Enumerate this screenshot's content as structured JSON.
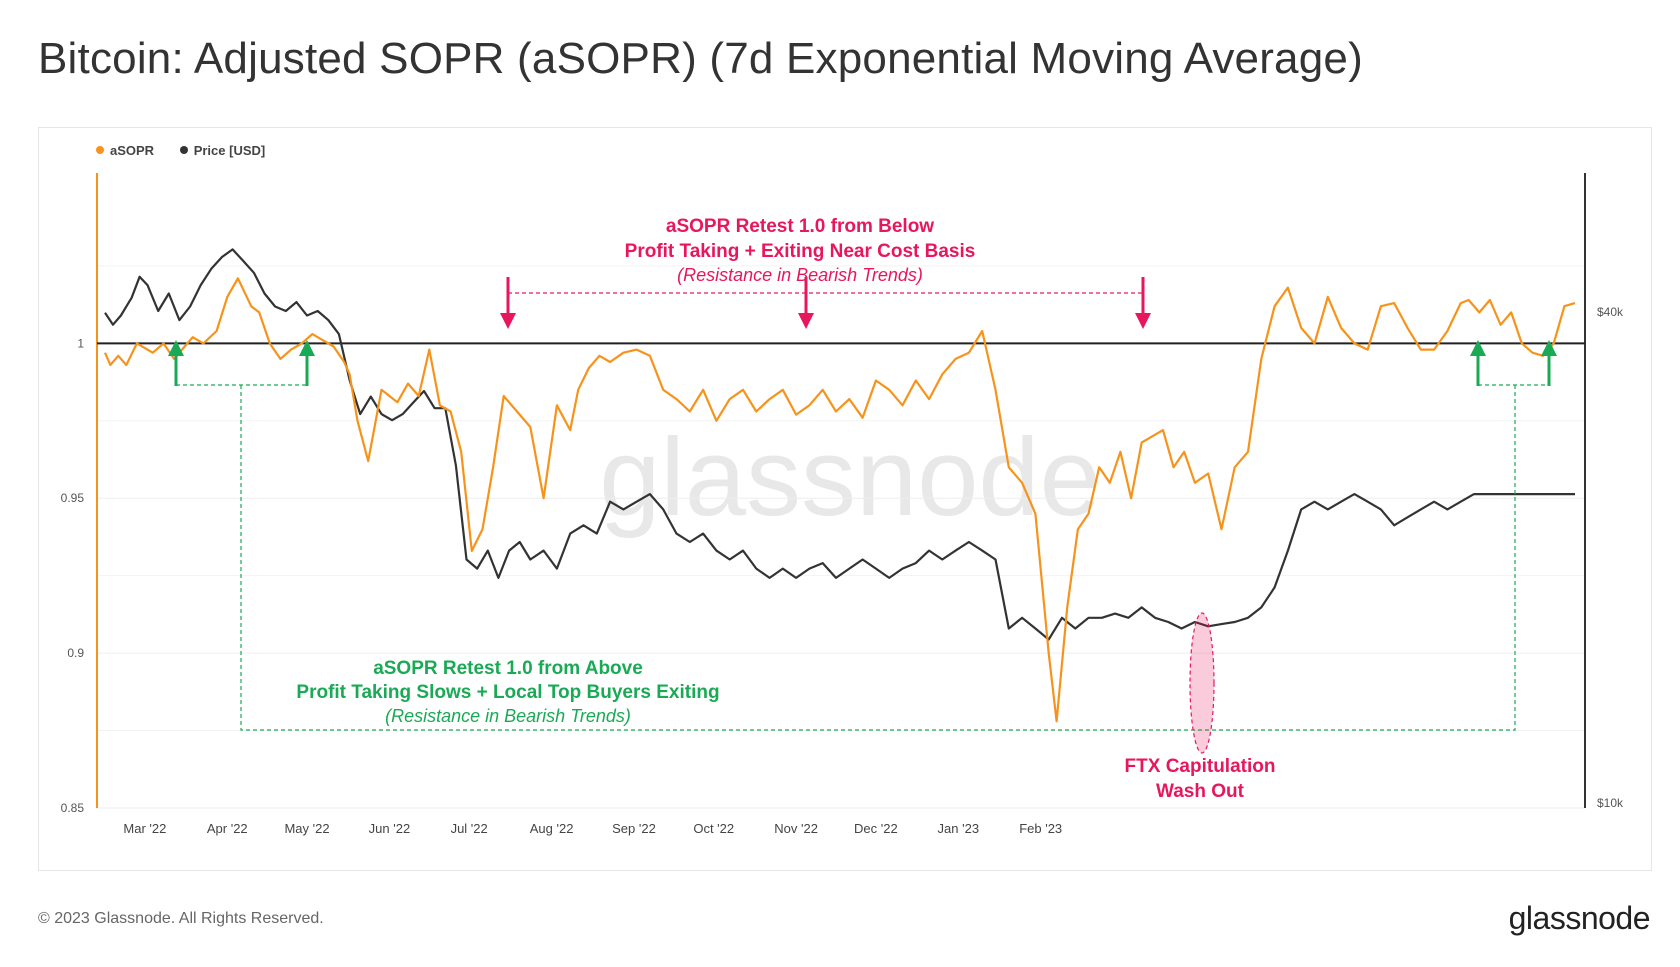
{
  "title": "Bitcoin: Adjusted SOPR (aSOPR) (7d Exponential Moving Average)",
  "footer": "© 2023 Glassnode. All Rights Reserved.",
  "brand": "glassnode",
  "watermark": "glassnode",
  "colors": {
    "asopr": "#f7931a",
    "price": "#333333",
    "red": "#e8175d",
    "green": "#1aaa55",
    "baseline": "#222222"
  },
  "chart_data": {
    "type": "line",
    "legend": [
      {
        "name": "aSOPR",
        "color": "#f7931a"
      },
      {
        "name": "Price [USD]",
        "color": "#333333"
      }
    ],
    "x_ticks": [
      "Mar '22",
      "Apr '22",
      "May '22",
      "Jun '22",
      "Jul '22",
      "Aug '22",
      "Sep '22",
      "Oct '22",
      "Nov '22",
      "Dec '22",
      "Jan '23",
      "Feb '23"
    ],
    "y_left_ticks": [
      "1",
      "0.95",
      "0.9",
      "0.85"
    ],
    "y_left_tick_values": [
      1.0,
      0.95,
      0.9,
      0.85
    ],
    "y_right_ticks": [
      "$40k",
      "$10k"
    ],
    "ylim_left": [
      0.85,
      1.055
    ],
    "baseline": 1.0,
    "series": [
      {
        "name": "aSOPR",
        "x": [
          0,
          2,
          5,
          8,
          12,
          18,
          22,
          26,
          30,
          33,
          37,
          42,
          46,
          50,
          55,
          58,
          62,
          66,
          70,
          74,
          78,
          82,
          86,
          90,
          92,
          95,
          99,
          104,
          110,
          114,
          118,
          122,
          126,
          130,
          134,
          138,
          142,
          146,
          150,
          155,
          160,
          165,
          170,
          175,
          178,
          182,
          186,
          190,
          195,
          200,
          205,
          210,
          215,
          220,
          225,
          230,
          235,
          240,
          245,
          250,
          255,
          260,
          265,
          270,
          275,
          280,
          285,
          290,
          295,
          300,
          305,
          310,
          315,
          320,
          325,
          330,
          335,
          340,
          345,
          350,
          355,
          358,
          362,
          366,
          370,
          374,
          378,
          382,
          386,
          390,
          394,
          398,
          402,
          406,
          410,
          415,
          420,
          425,
          430,
          435,
          440,
          445,
          450,
          455,
          460,
          465,
          470,
          475,
          480,
          485,
          490,
          495,
          500,
          505,
          510,
          513,
          517,
          521,
          525,
          529,
          533,
          537,
          541,
          545,
          549,
          553
        ],
        "values": [
          0.997,
          0.993,
          0.996,
          0.993,
          1.0,
          0.997,
          1.0,
          0.995,
          0.999,
          1.002,
          1.0,
          1.004,
          1.015,
          1.021,
          1.012,
          1.01,
          1.0,
          0.995,
          0.998,
          1.0,
          1.003,
          1.001,
          0.999,
          0.994,
          0.99,
          0.975,
          0.962,
          0.985,
          0.981,
          0.987,
          0.983,
          0.998,
          0.98,
          0.978,
          0.965,
          0.933,
          0.94,
          0.96,
          0.983,
          0.978,
          0.973,
          0.95,
          0.98,
          0.972,
          0.985,
          0.992,
          0.996,
          0.994,
          0.997,
          0.998,
          0.996,
          0.985,
          0.982,
          0.978,
          0.985,
          0.975,
          0.982,
          0.985,
          0.978,
          0.982,
          0.985,
          0.977,
          0.98,
          0.985,
          0.978,
          0.982,
          0.976,
          0.988,
          0.985,
          0.98,
          0.988,
          0.982,
          0.99,
          0.995,
          0.997,
          1.004,
          0.985,
          0.96,
          0.955,
          0.945,
          0.9,
          0.878,
          0.915,
          0.94,
          0.945,
          0.96,
          0.955,
          0.965,
          0.95,
          0.968,
          0.97,
          0.972,
          0.96,
          0.965,
          0.955,
          0.958,
          0.94,
          0.96,
          0.965,
          0.995,
          1.012,
          1.018,
          1.005,
          1.0,
          1.015,
          1.005,
          1.0,
          0.998,
          1.012,
          1.013,
          1.005,
          0.998,
          0.998,
          1.004,
          1.013,
          1.014,
          1.01,
          1.014,
          1.006,
          1.01,
          1.0,
          0.997,
          0.996,
          1.0,
          1.012,
          1.013
        ]
      },
      {
        "name": "Price [USD]",
        "x": [
          0,
          3,
          6,
          10,
          13,
          16,
          20,
          24,
          28,
          32,
          36,
          40,
          44,
          48,
          52,
          56,
          60,
          64,
          68,
          72,
          76,
          80,
          84,
          88,
          92,
          96,
          100,
          104,
          108,
          112,
          116,
          120,
          124,
          128,
          132,
          136,
          140,
          144,
          148,
          152,
          156,
          160,
          165,
          170,
          175,
          180,
          185,
          190,
          195,
          200,
          205,
          210,
          215,
          220,
          225,
          230,
          235,
          240,
          245,
          250,
          255,
          260,
          265,
          270,
          275,
          280,
          285,
          290,
          295,
          300,
          305,
          310,
          315,
          320,
          325,
          330,
          335,
          340,
          345,
          350,
          355,
          360,
          365,
          370,
          375,
          380,
          385,
          390,
          395,
          400,
          405,
          410,
          415,
          420,
          425,
          430,
          435,
          440,
          445,
          450,
          455,
          460,
          465,
          470,
          475,
          480,
          485,
          490,
          495,
          500,
          505,
          510,
          515,
          520,
          525,
          530,
          535,
          540,
          545,
          549,
          553
        ],
        "values": [
          39.8,
          38.5,
          39.5,
          41.5,
          44.0,
          43.0,
          40.0,
          42.0,
          39.0,
          40.5,
          43.0,
          45.0,
          46.5,
          47.5,
          46.0,
          44.5,
          42.0,
          40.5,
          40.0,
          41.0,
          39.5,
          40.0,
          39.0,
          37.5,
          33.0,
          30.0,
          31.5,
          30.0,
          29.5,
          30.0,
          31.0,
          32.0,
          30.5,
          30.5,
          26.0,
          20.0,
          19.5,
          20.5,
          19.0,
          20.5,
          21.0,
          20.0,
          20.5,
          19.5,
          21.5,
          22.0,
          21.5,
          23.5,
          23.0,
          23.5,
          24.0,
          23.0,
          21.5,
          21.0,
          21.5,
          20.5,
          20.0,
          20.5,
          19.5,
          19.0,
          19.5,
          19.0,
          19.5,
          19.8,
          19.0,
          19.5,
          20.0,
          19.5,
          19.0,
          19.5,
          19.8,
          20.5,
          20.0,
          20.5,
          21.0,
          20.5,
          20.0,
          16.5,
          17.0,
          16.5,
          16.0,
          17.0,
          16.5,
          17.0,
          17.0,
          17.2,
          17.0,
          17.5,
          17.0,
          16.8,
          16.5,
          16.8,
          16.6,
          16.7,
          16.8,
          17.0,
          17.5,
          18.5,
          20.5,
          23.0,
          23.5,
          23.0,
          23.5,
          24.0,
          23.5,
          23.0,
          22.0,
          22.5,
          23.0,
          23.5,
          23.0,
          23.5,
          24.0,
          24.0,
          24.0,
          24.0,
          24.0,
          24.0,
          24.0,
          24.0,
          24.0
        ]
      }
    ],
    "annotations": [
      {
        "lines": [
          "aSOPR Retest 1.0 from Below",
          "Profit Taking + Exiting Near Cost Basis",
          "(Resistance in Bearish Trends)"
        ],
        "color": "#e8175d"
      },
      {
        "lines": [
          "aSOPR Retest 1.0 from Above",
          "Profit Taking Slows + Local Top Buyers Exiting",
          "(Resistance in Bearish Trends)"
        ],
        "color": "#1aaa55"
      },
      {
        "lines": [
          "FTX Capitulation",
          "Wash Out"
        ],
        "color": "#e8175d"
      }
    ]
  }
}
